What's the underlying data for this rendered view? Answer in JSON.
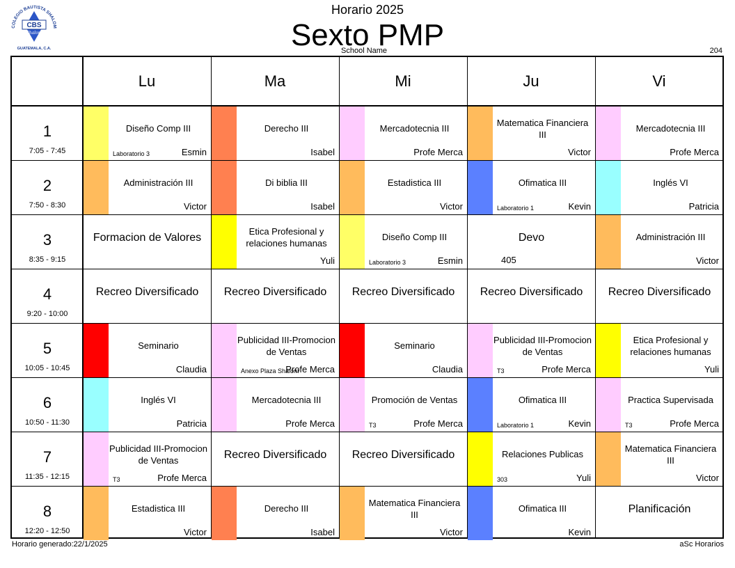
{
  "header": {
    "logo_text": "COLEGIO BAUTISTA SHALOM",
    "logo_letters": "CBS",
    "logo_script": "Shalom",
    "logo_city": "GUATEMALA, C.A.",
    "top_title": "Horario 2025",
    "main_title": "Sexto PMP",
    "school_name": "School Name",
    "room_number": "204"
  },
  "colors": {
    "yellow_light": "#ffff66",
    "orange_red": "#ff8050",
    "pink": "#ffccff",
    "orange": "#ffbb5c",
    "blue": "#5b80ff",
    "cyan": "#99ffff",
    "yellow": "#ffff00",
    "red": "#ff0000"
  },
  "days": [
    "Lu",
    "Ma",
    "Mi",
    "Ju",
    "Vi"
  ],
  "periods": [
    {
      "num": "1",
      "time": "7:05 - 7:45"
    },
    {
      "num": "2",
      "time": "7:50 - 8:30"
    },
    {
      "num": "3",
      "time": "8:35 - 9:15"
    },
    {
      "num": "4",
      "time": "9:20 - 10:00"
    },
    {
      "num": "5",
      "time": "10:05 - 10:45"
    },
    {
      "num": "6",
      "time": "10:50 - 11:30"
    },
    {
      "num": "7",
      "time": "11:35 - 12:15"
    },
    {
      "num": "8",
      "time": "12:20 - 12:50"
    }
  ],
  "schedule": [
    [
      {
        "subject": "Diseño Comp III",
        "teacher": "Esmin",
        "room": "Laboratorio 3",
        "color": "#ffff66"
      },
      {
        "subject": "Derecho III",
        "teacher": "Isabel",
        "room": "",
        "color": "#ff8050"
      },
      {
        "subject": "Mercadotecnia III",
        "teacher": "Profe Merca",
        "room": "",
        "color": "#ffccff"
      },
      {
        "subject": "Matematica Financiera III",
        "teacher": "Victor",
        "room": "",
        "color": "#ffbb5c"
      },
      {
        "subject": "Mercadotecnia III",
        "teacher": "Profe Merca",
        "room": "",
        "color": "#ffccff"
      }
    ],
    [
      {
        "subject": "Administración III",
        "teacher": "Victor",
        "room": "",
        "color": "#ffbb5c"
      },
      {
        "subject": "Di biblia III",
        "teacher": "Isabel",
        "room": "",
        "color": "#ff8050"
      },
      {
        "subject": "Estadistica III",
        "teacher": "Victor",
        "room": "",
        "color": "#ffbb5c"
      },
      {
        "subject": "Ofimatica III",
        "teacher": "Kevin",
        "room": "Laboratorio 1",
        "color": "#5b80ff"
      },
      {
        "subject": "Inglés VI",
        "teacher": "Patricia",
        "room": "",
        "color": "#99ffff"
      }
    ],
    [
      {
        "subject": "Formacion de Valores",
        "teacher": "",
        "room": "",
        "color": ""
      },
      {
        "subject": "Etica Profesional y relaciones humanas",
        "teacher": "Yuli",
        "room": "",
        "color": "#ffff00"
      },
      {
        "subject": "Diseño Comp III",
        "teacher": "Esmin",
        "room": "Laboratorio 3",
        "color": "#ffff66"
      },
      {
        "subject": "Devo",
        "teacher": "",
        "room": "405",
        "color": ""
      },
      {
        "subject": "Administración III",
        "teacher": "Victor",
        "room": "",
        "color": "#ffbb5c"
      }
    ],
    [
      {
        "subject": "Recreo Diversificado",
        "teacher": "",
        "room": "",
        "color": ""
      },
      {
        "subject": "Recreo Diversificado",
        "teacher": "",
        "room": "",
        "color": ""
      },
      {
        "subject": "Recreo Diversificado",
        "teacher": "",
        "room": "",
        "color": ""
      },
      {
        "subject": "Recreo Diversificado",
        "teacher": "",
        "room": "",
        "color": ""
      },
      {
        "subject": "Recreo Diversificado",
        "teacher": "",
        "room": "",
        "color": ""
      }
    ],
    [
      {
        "subject": "Seminario",
        "teacher": "Claudia",
        "room": "",
        "color": "#ff0000"
      },
      {
        "subject": "Publicidad III-Promocion de Ventas",
        "teacher": "Profe Merca",
        "room": "Anexo Plaza Shalom",
        "color": "#ffccff"
      },
      {
        "subject": "Seminario",
        "teacher": "Claudia",
        "room": "",
        "color": "#ff0000"
      },
      {
        "subject": "Publicidad III-Promocion de Ventas",
        "teacher": "Profe Merca",
        "room": "T3",
        "color": "#ffccff"
      },
      {
        "subject": "Etica Profesional y relaciones humanas",
        "teacher": "Yuli",
        "room": "",
        "color": "#ffff00"
      }
    ],
    [
      {
        "subject": "Inglés VI",
        "teacher": "Patricia",
        "room": "",
        "color": "#99ffff"
      },
      {
        "subject": "Mercadotecnia III",
        "teacher": "Profe Merca",
        "room": "",
        "color": "#ffccff"
      },
      {
        "subject": "Promoción de Ventas",
        "teacher": "Profe Merca",
        "room": "T3",
        "color": "#ffccff"
      },
      {
        "subject": "Ofimatica III",
        "teacher": "Kevin",
        "room": "Laboratorio 1",
        "color": "#5b80ff"
      },
      {
        "subject": "Practica Supervisada",
        "teacher": "Profe Merca",
        "room": "T3",
        "color": "#ffccff"
      }
    ],
    [
      {
        "subject": "Publicidad III-Promocion de Ventas",
        "teacher": "Profe Merca",
        "room": "T3",
        "color": "#ffccff"
      },
      {
        "subject": "Recreo Diversificado",
        "teacher": "",
        "room": "",
        "color": ""
      },
      {
        "subject": "Recreo Diversificado",
        "teacher": "",
        "room": "",
        "color": ""
      },
      {
        "subject": "Relaciones Publicas",
        "teacher": "Yuli",
        "room": "303",
        "color": "#ffff00"
      },
      {
        "subject": "Matematica Financiera III",
        "teacher": "Victor",
        "room": "",
        "color": "#ffbb5c"
      }
    ],
    [
      {
        "subject": "Estadistica III",
        "teacher": "Victor",
        "room": "",
        "color": "#ffbb5c"
      },
      {
        "subject": "Derecho III",
        "teacher": "Isabel",
        "room": "",
        "color": "#ff8050"
      },
      {
        "subject": "Matematica Financiera III",
        "teacher": "Victor",
        "room": "",
        "color": "#ffbb5c"
      },
      {
        "subject": "Ofimatica III",
        "teacher": "Kevin",
        "room": "",
        "color": "#5b80ff"
      },
      {
        "subject": "Planificación",
        "teacher": "",
        "room": "",
        "color": ""
      }
    ]
  ],
  "footer": {
    "generated": "Horario generado:22/1/2025",
    "brand": "aSc Horarios"
  }
}
